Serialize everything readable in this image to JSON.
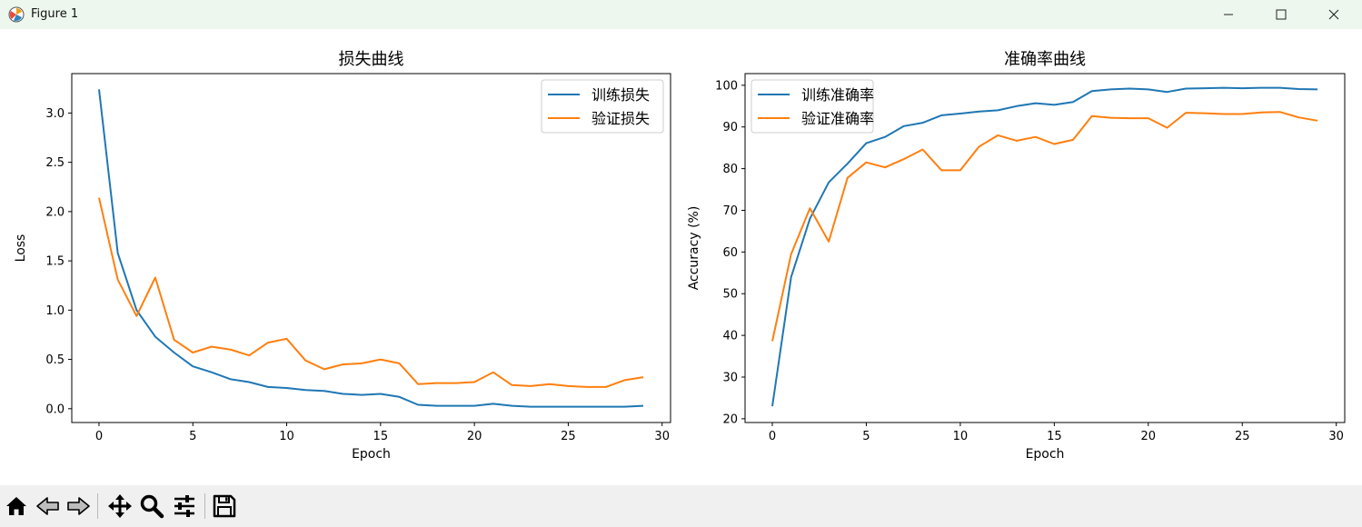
{
  "window": {
    "title": "Figure 1"
  },
  "colors": {
    "train": "#1f77b4",
    "val": "#ff7f0e",
    "titlebar": "#edf7ee",
    "toolbar": "#f0f0f0"
  },
  "toolbar": {
    "icons": [
      "home-icon",
      "back-arrow-icon",
      "forward-arrow-icon",
      "pan-icon",
      "zoom-icon",
      "configure-subplots-icon",
      "save-icon"
    ]
  },
  "chart_data": [
    {
      "type": "line",
      "title": "损失曲线",
      "xlabel": "Epoch",
      "ylabel": "Loss",
      "xlim": [
        -1.45,
        30.45
      ],
      "ylim": [
        -0.14,
        3.4
      ],
      "xticks": [
        0,
        5,
        10,
        15,
        20,
        25,
        30
      ],
      "xtick_labels": [
        "0",
        "5",
        "10",
        "15",
        "20",
        "25",
        "30"
      ],
      "yticks": [
        0.0,
        0.5,
        1.0,
        1.5,
        2.0,
        2.5,
        3.0
      ],
      "ytick_labels": [
        "0.0",
        "0.5",
        "1.0",
        "1.5",
        "2.0",
        "2.5",
        "3.0"
      ],
      "grid": false,
      "legend_position": "upper right",
      "x": [
        0,
        1,
        2,
        3,
        4,
        5,
        6,
        7,
        8,
        9,
        10,
        11,
        12,
        13,
        14,
        15,
        16,
        17,
        18,
        19,
        20,
        21,
        22,
        23,
        24,
        25,
        26,
        27,
        28,
        29
      ],
      "series": [
        {
          "name": "训练损失",
          "color": "#1f77b4",
          "values": [
            3.24,
            1.58,
            1.0,
            0.73,
            0.57,
            0.43,
            0.37,
            0.3,
            0.27,
            0.22,
            0.21,
            0.19,
            0.18,
            0.15,
            0.14,
            0.15,
            0.12,
            0.04,
            0.03,
            0.03,
            0.03,
            0.05,
            0.03,
            0.02,
            0.02,
            0.02,
            0.02,
            0.02,
            0.02,
            0.03
          ]
        },
        {
          "name": "验证损失",
          "color": "#ff7f0e",
          "values": [
            2.14,
            1.31,
            0.94,
            1.33,
            0.7,
            0.57,
            0.63,
            0.6,
            0.54,
            0.67,
            0.71,
            0.49,
            0.4,
            0.45,
            0.46,
            0.5,
            0.46,
            0.25,
            0.26,
            0.26,
            0.27,
            0.37,
            0.24,
            0.23,
            0.25,
            0.23,
            0.22,
            0.22,
            0.29,
            0.32
          ]
        }
      ]
    },
    {
      "type": "line",
      "title": "准确率曲线",
      "xlabel": "Epoch",
      "ylabel": "Accuracy (%)",
      "xlim": [
        -1.45,
        30.45
      ],
      "ylim": [
        19.1,
        102.8
      ],
      "xticks": [
        0,
        5,
        10,
        15,
        20,
        25,
        30
      ],
      "xtick_labels": [
        "0",
        "5",
        "10",
        "15",
        "20",
        "25",
        "30"
      ],
      "yticks": [
        20,
        30,
        40,
        50,
        60,
        70,
        80,
        90,
        100
      ],
      "ytick_labels": [
        "20",
        "30",
        "40",
        "50",
        "60",
        "70",
        "80",
        "90",
        "100"
      ],
      "grid": false,
      "legend_position": "upper left",
      "x": [
        0,
        1,
        2,
        3,
        4,
        5,
        6,
        7,
        8,
        9,
        10,
        11,
        12,
        13,
        14,
        15,
        16,
        17,
        18,
        19,
        20,
        21,
        22,
        23,
        24,
        25,
        26,
        27,
        28,
        29
      ],
      "series": [
        {
          "name": "训练准确率",
          "color": "#1f77b4",
          "values": [
            23,
            54,
            68,
            76.7,
            81.2,
            86.1,
            87.6,
            90.2,
            91,
            92.8,
            93.2,
            93.7,
            94,
            95,
            95.7,
            95.3,
            96,
            98.6,
            99,
            99.2,
            99,
            98.4,
            99.2,
            99.3,
            99.4,
            99.3,
            99.4,
            99.4,
            99.1,
            99
          ]
        },
        {
          "name": "验证准确率",
          "color": "#ff7f0e",
          "values": [
            38.6,
            59.5,
            70.5,
            62.5,
            77.8,
            81.5,
            80.3,
            82.3,
            84.6,
            79.6,
            79.6,
            85.3,
            88,
            86.7,
            87.6,
            85.9,
            86.9,
            92.6,
            92.2,
            92.1,
            92.1,
            89.8,
            93.4,
            93.3,
            93.1,
            93.1,
            93.5,
            93.6,
            92.3,
            91.5
          ]
        }
      ]
    }
  ]
}
